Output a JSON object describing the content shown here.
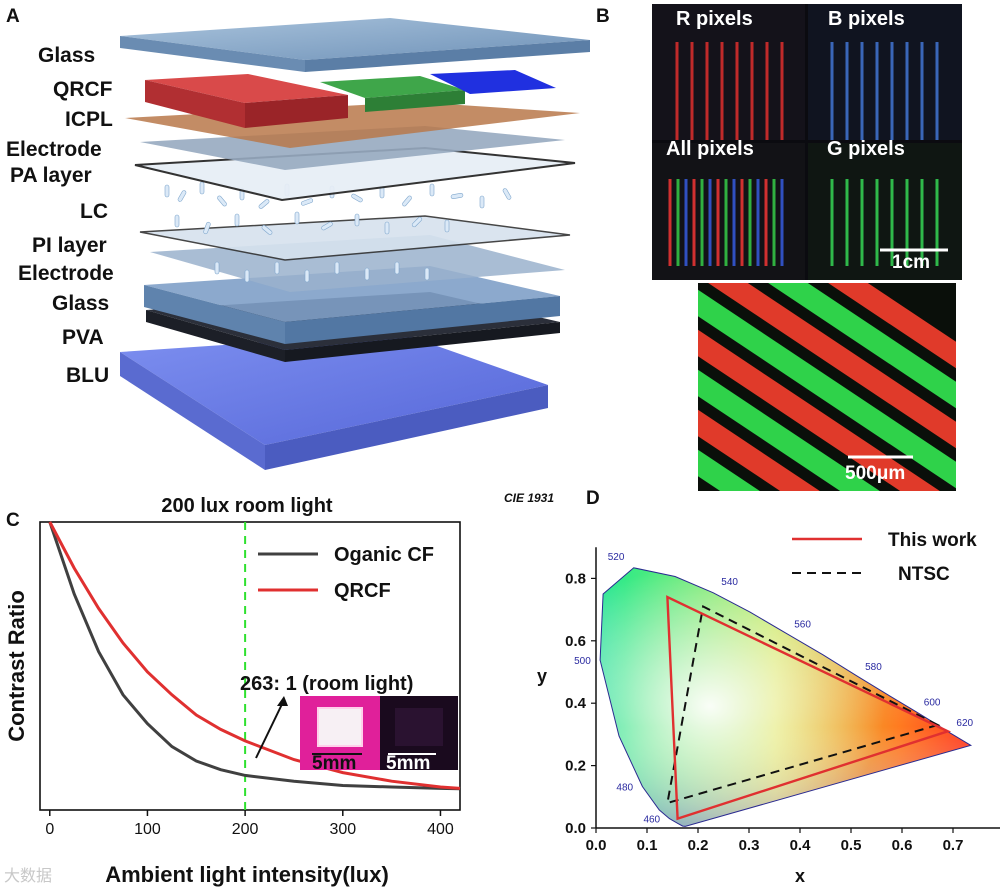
{
  "panels": {
    "a": "A",
    "b": "B",
    "c": "C",
    "d": "D"
  },
  "panel_a": {
    "layers": [
      "Glass",
      "QRCF",
      "ICPL",
      "Electrode",
      "PA layer",
      "LC",
      "PI layer",
      "Electrode",
      "Glass",
      "PVA",
      "BLU"
    ]
  },
  "panel_b": {
    "r_pixels": "R pixels",
    "b_pixels": "B pixels",
    "all_pixels": "All pixels",
    "g_pixels": "G pixels",
    "scale_1": "1cm",
    "scale_2": "500μm"
  },
  "chart_data": [
    {
      "type": "line",
      "title": "200 lux room light",
      "xlabel": "Ambient light intensity(lux)",
      "ylabel": "Contrast Ratio",
      "xlim": [
        -10,
        420
      ],
      "x_ticks": [
        "0",
        "100",
        "200",
        "300",
        "400"
      ],
      "y_ticks": [],
      "vline_x": 200,
      "annotation": "263: 1 (room light)",
      "inset_scale_labels": [
        "5mm",
        "5mm"
      ],
      "series": [
        {
          "name": "Oganic CF",
          "color": "#404040",
          "x": [
            0,
            25,
            50,
            75,
            100,
            125,
            150,
            175,
            200,
            250,
            300,
            350,
            400,
            420
          ],
          "values": [
            1.0,
            0.75,
            0.55,
            0.4,
            0.3,
            0.22,
            0.17,
            0.14,
            0.12,
            0.1,
            0.085,
            0.08,
            0.075,
            0.074
          ]
        },
        {
          "name": "QRCF",
          "color": "#e03030",
          "x": [
            0,
            25,
            50,
            75,
            100,
            125,
            150,
            175,
            200,
            250,
            300,
            350,
            400,
            420
          ],
          "values": [
            1.0,
            0.84,
            0.7,
            0.58,
            0.48,
            0.4,
            0.33,
            0.28,
            0.24,
            0.175,
            0.13,
            0.1,
            0.08,
            0.075
          ]
        }
      ]
    },
    {
      "type": "scatter",
      "title": "CIE 1931",
      "xlabel": "x",
      "ylabel": "y",
      "xlim": [
        0.0,
        0.8
      ],
      "ylim": [
        0.0,
        0.9
      ],
      "x_ticks": [
        "0.0",
        "0.1",
        "0.2",
        "0.3",
        "0.4",
        "0.5",
        "0.6",
        "0.7"
      ],
      "y_ticks": [
        "0.0",
        "0.2",
        "0.4",
        "0.6",
        "0.8"
      ],
      "wavelength_labels": [
        {
          "label": "460",
          "x": 0.144,
          "y": 0.03
        },
        {
          "label": "480",
          "x": 0.091,
          "y": 0.133
        },
        {
          "label": "500",
          "x": 0.008,
          "y": 0.538
        },
        {
          "label": "520",
          "x": 0.074,
          "y": 0.834
        },
        {
          "label": "540",
          "x": 0.23,
          "y": 0.754
        },
        {
          "label": "560",
          "x": 0.373,
          "y": 0.624
        },
        {
          "label": "580",
          "x": 0.512,
          "y": 0.487
        },
        {
          "label": "600",
          "x": 0.627,
          "y": 0.373
        },
        {
          "label": "620",
          "x": 0.691,
          "y": 0.308
        }
      ],
      "series": [
        {
          "name": "This work",
          "color": "#e03030",
          "style": "solid",
          "points": [
            [
              0.69,
              0.31
            ],
            [
              0.14,
              0.74
            ],
            [
              0.16,
              0.03
            ]
          ]
        },
        {
          "name": "NTSC",
          "color": "#111111",
          "style": "dashed",
          "points": [
            [
              0.67,
              0.33
            ],
            [
              0.21,
              0.71
            ],
            [
              0.14,
              0.08
            ]
          ]
        }
      ]
    }
  ],
  "watermark": "大数据"
}
